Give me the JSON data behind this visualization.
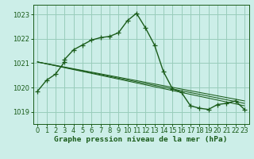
{
  "title": "Graphe pression niveau de la mer (hPa)",
  "bg_color": "#cceee8",
  "plot_bg_color": "#cceee8",
  "grid_color": "#99ccbb",
  "line_color": "#1a5c1a",
  "ylim": [
    1018.5,
    1023.4
  ],
  "yticks": [
    1019,
    1020,
    1021,
    1022,
    1023
  ],
  "xlim": [
    -0.5,
    23.5
  ],
  "xticks": [
    0,
    1,
    2,
    3,
    4,
    5,
    6,
    7,
    8,
    9,
    10,
    11,
    12,
    13,
    14,
    15,
    16,
    17,
    18,
    19,
    20,
    21,
    22,
    23
  ],
  "series1_x": [
    0,
    1,
    2,
    3,
    3,
    4,
    5,
    6,
    7,
    8,
    9,
    10,
    11,
    12,
    13,
    14,
    15,
    16,
    17,
    18,
    19,
    20,
    21,
    22,
    23
  ],
  "series1_y": [
    1019.85,
    1020.3,
    1020.55,
    1021.05,
    1021.15,
    1021.55,
    1021.75,
    1021.95,
    1022.05,
    1022.1,
    1022.25,
    1022.75,
    1023.05,
    1022.45,
    1021.75,
    1020.65,
    1019.95,
    1019.8,
    1019.25,
    1019.15,
    1019.1,
    1019.3,
    1019.35,
    1019.45,
    1019.1
  ],
  "trend1_x": [
    0,
    23
  ],
  "trend1_y": [
    1021.05,
    1019.45
  ],
  "trend2_x": [
    0,
    23
  ],
  "trend2_y": [
    1021.05,
    1019.35
  ],
  "trend3_x": [
    0,
    23
  ],
  "trend3_y": [
    1021.05,
    1019.25
  ],
  "xlabel_fontsize": 6.8,
  "tick_fontsize": 6.0,
  "title_color": "#1a5c1a"
}
